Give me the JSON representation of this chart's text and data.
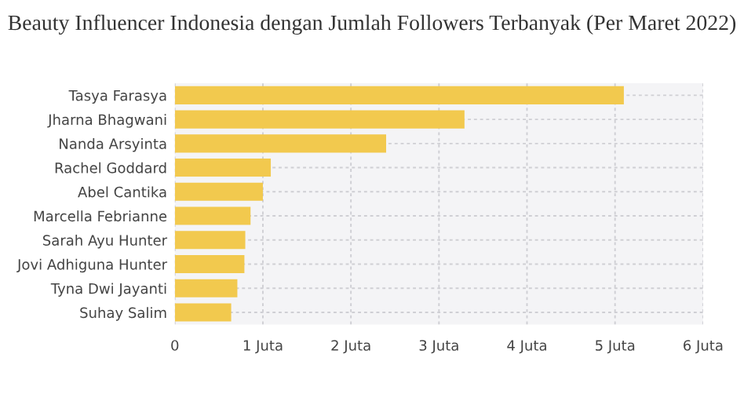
{
  "chart_data": {
    "type": "bar",
    "orientation": "horizontal",
    "title": "Beauty Influencer Indonesia dengan Jumlah Followers Terbanyak (Per Maret 2022)",
    "categories": [
      "Tasya Farasya",
      "Jharna Bhagwani",
      "Nanda Arsyinta",
      "Rachel Goddard",
      "Abel Cantika",
      "Marcella Febrianne",
      "Sarah Ayu Hunter",
      "Jovi Adhiguna Hunter",
      "Tyna Dwi Jayanti",
      "Suhay Salim"
    ],
    "values": [
      5.1,
      3.29,
      2.4,
      1.09,
      1.0,
      0.86,
      0.8,
      0.79,
      0.71,
      0.64
    ],
    "color": "#f2c94e",
    "xlim": [
      0,
      6
    ],
    "xticks": [
      0,
      {
        "value": 1,
        "label": "1 Juta"
      },
      {
        "value": 2,
        "label": "2 Juta"
      },
      {
        "value": 3,
        "label": "3 Juta"
      },
      {
        "value": 4,
        "label": "4 Juta"
      },
      {
        "value": 5,
        "label": "5 Juta"
      },
      {
        "value": 6,
        "label": "6 Juta"
      }
    ],
    "grid": true
  }
}
